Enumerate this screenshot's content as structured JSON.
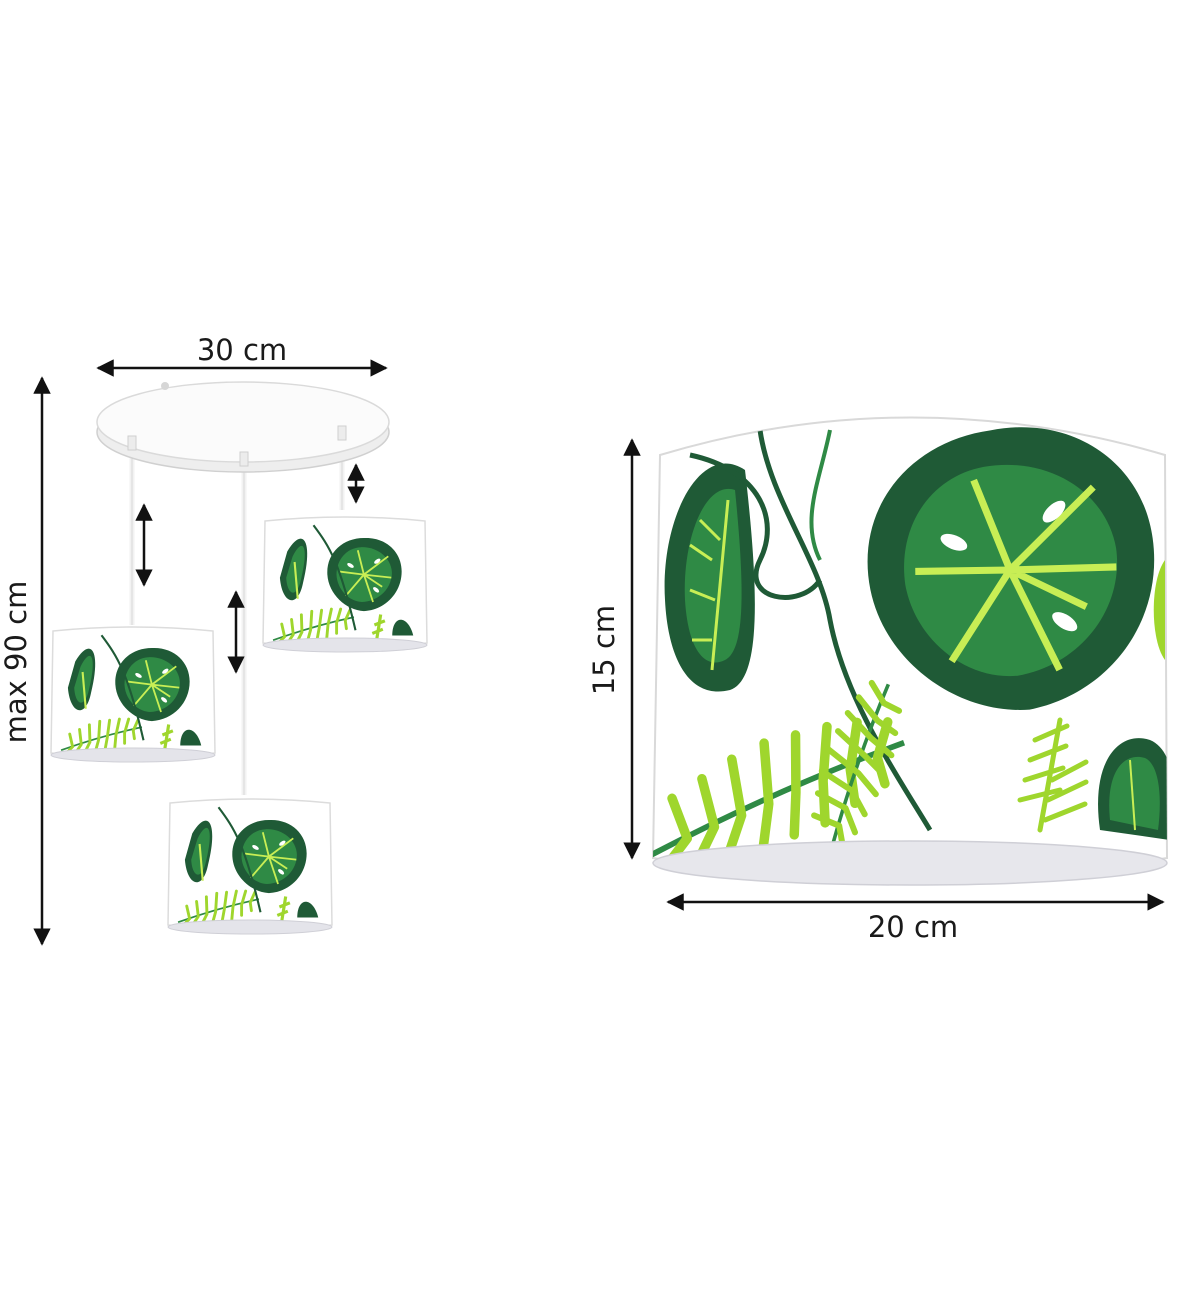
{
  "dimensions": {
    "width_label": "30 cm",
    "height_label": "max 90 cm",
    "shade_height_label": "15 cm",
    "shade_width_label": "20 cm"
  },
  "colors": {
    "dark_leaf": "#1f5a36",
    "mid_leaf": "#2f8a45",
    "light_leaf": "#9fd62d",
    "vein": "#c8ee55",
    "canopy": "#f1f1f1",
    "arrow": "#111111"
  }
}
